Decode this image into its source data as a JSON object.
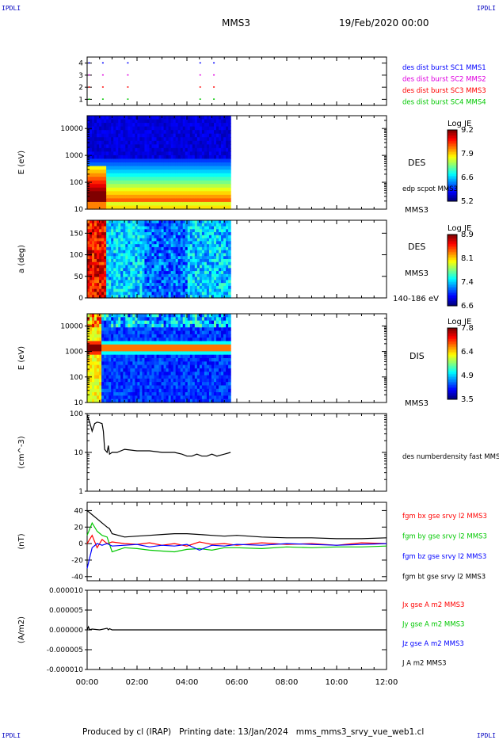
{
  "header": {
    "corner_tl": "IPDLI",
    "corner_tr": "IPDLI",
    "corner_bl": "IPDLI",
    "corner_br": "IPDLI",
    "spacecraft": "MMS3",
    "date": "19/Feb/2020 00:00"
  },
  "footer": {
    "produced_by": "Produced by cl (IRAP)",
    "printing_date": "Printing date: 13/Jan/2024",
    "file": "mms_mms3_srvy_vue_web1.cl"
  },
  "colors": {
    "black": "#000000",
    "red": "#ff0000",
    "green": "#00c800",
    "blue": "#0000ff",
    "magenta": "#e000e0"
  },
  "chart_data": [
    {
      "type": "scatter",
      "panel": "burst-availability",
      "yticks": [
        "1",
        "2",
        "3",
        "4"
      ],
      "ylim": [
        0.5,
        4.5
      ],
      "legend": [
        {
          "name": "des dist burst SC1 MMS1",
          "color": "#0000ff"
        },
        {
          "name": "des dist burst SC2 MMS2",
          "color": "#e000e0"
        },
        {
          "name": "des dist burst SC3 MMS3",
          "color": "#ff0000"
        },
        {
          "name": "des dist burst SC4 MMS4",
          "color": "#00c800"
        }
      ],
      "x_hours": [
        0.05,
        0.6,
        1.6,
        4.5,
        5.05
      ]
    },
    {
      "type": "heatmap",
      "panel": "des-energy-spectrogram",
      "ylabel": "E (eV)",
      "yscale": "log",
      "yticks": [
        "10",
        "100",
        "1000",
        "10000"
      ],
      "ylim": [
        10,
        30000
      ],
      "data_end_hours": 5.75,
      "side_label": "DES",
      "sub_label": "MMS3",
      "overlay_label": "edp scpot MMS3",
      "colorbar": {
        "title": "Log JE",
        "ticks": [
          "9.2",
          "7.9",
          "6.6",
          "5.2"
        ]
      }
    },
    {
      "type": "heatmap",
      "panel": "des-pitch-angle",
      "ylabel": "a (deg)",
      "yticks": [
        "0",
        "50",
        "100",
        "150"
      ],
      "ylim": [
        0,
        180
      ],
      "data_end_hours": 5.75,
      "side_label": "DES",
      "sub_label": "MMS3",
      "energy_label": "140-186 eV",
      "colorbar": {
        "title": "Log JE",
        "ticks": [
          "8.9",
          "8.1",
          "7.4",
          "6.6"
        ]
      }
    },
    {
      "type": "heatmap",
      "panel": "dis-energy-spectrogram",
      "ylabel": "E (eV)",
      "yscale": "log",
      "yticks": [
        "10",
        "100",
        "1000",
        "10000"
      ],
      "ylim": [
        10,
        30000
      ],
      "data_end_hours": 5.75,
      "side_label": "DIS",
      "sub_label": "MMS3",
      "colorbar": {
        "title": "Log JE",
        "ticks": [
          "7.8",
          "6.4",
          "4.9",
          "3.5"
        ]
      }
    },
    {
      "type": "line",
      "panel": "density",
      "ylabel": "(cm^-3)",
      "yscale": "log",
      "yticks": [
        "1",
        "10",
        "100"
      ],
      "ylim": [
        1,
        100
      ],
      "legend": [
        {
          "name": "des numberdensity fast MMS3",
          "color": "#000000"
        }
      ],
      "series": [
        {
          "name": "des numberdensity fast MMS3",
          "color": "#000000",
          "x": [
            0.0,
            0.1,
            0.2,
            0.3,
            0.4,
            0.5,
            0.6,
            0.65,
            0.7,
            0.8,
            0.85,
            0.9,
            1.0,
            1.2,
            1.5,
            2.0,
            2.5,
            3.0,
            3.5,
            3.8,
            4.0,
            4.2,
            4.4,
            4.6,
            4.8,
            5.0,
            5.2,
            5.5,
            5.75
          ],
          "y": [
            90,
            60,
            35,
            55,
            60,
            58,
            55,
            35,
            12,
            10,
            15,
            9,
            10,
            10,
            12,
            11,
            11,
            10,
            10,
            9,
            8,
            8,
            9,
            8,
            8,
            9,
            8,
            9,
            10
          ]
        }
      ]
    },
    {
      "type": "line",
      "panel": "magnetic-field",
      "ylabel": "(nT)",
      "yticks": [
        "-40",
        "-20",
        "0",
        "20",
        "40"
      ],
      "ylim": [
        -45,
        50
      ],
      "legend": [
        {
          "name": "fgm bx gse srvy l2 MMS3",
          "color": "#ff0000"
        },
        {
          "name": "fgm by gse srvy l2 MMS3",
          "color": "#00c800"
        },
        {
          "name": "fgm bz gse srvy l2 MMS3",
          "color": "#0000ff"
        },
        {
          "name": "fgm bt gse srvy l2 MMS3",
          "color": "#000000"
        }
      ],
      "series": [
        {
          "name": "fgm bx gse srvy l2 MMS3",
          "color": "#ff0000",
          "x": [
            0,
            0.2,
            0.4,
            0.6,
            0.8,
            1,
            1.5,
            2,
            2.5,
            3,
            3.5,
            4,
            4.5,
            5,
            5.5,
            6,
            7,
            8,
            9,
            10,
            11,
            12
          ],
          "y": [
            0,
            10,
            -5,
            5,
            0,
            2,
            0,
            -1,
            1,
            -2,
            0,
            -3,
            2,
            -1,
            0,
            -2,
            1,
            -1,
            0,
            -2,
            1,
            0
          ]
        },
        {
          "name": "fgm by gse srvy l2 MMS3",
          "color": "#00c800",
          "x": [
            0,
            0.2,
            0.4,
            0.6,
            0.8,
            1,
            1.5,
            2,
            2.5,
            3,
            3.5,
            4,
            4.5,
            5,
            5.5,
            6,
            7,
            8,
            9,
            10,
            11,
            12
          ],
          "y": [
            10,
            25,
            15,
            10,
            8,
            -10,
            -5,
            -6,
            -8,
            -9,
            -10,
            -7,
            -6,
            -8,
            -5,
            -5,
            -6,
            -4,
            -5,
            -4,
            -4,
            -3
          ]
        },
        {
          "name": "fgm bz gse srvy l2 MMS3",
          "color": "#0000ff",
          "x": [
            0,
            0.2,
            0.4,
            0.6,
            0.8,
            1,
            1.5,
            2,
            2.5,
            3,
            3.5,
            4,
            4.5,
            5,
            5.5,
            6,
            7,
            8,
            9,
            10,
            11,
            12
          ],
          "y": [
            -30,
            -5,
            0,
            -2,
            0,
            -3,
            -2,
            -1,
            -4,
            -2,
            -3,
            -1,
            -8,
            -2,
            -3,
            -1,
            -2,
            0,
            -1,
            -2,
            -1,
            0
          ]
        },
        {
          "name": "fgm bt gse srvy l2 MMS3",
          "color": "#000000",
          "x": [
            0,
            0.2,
            0.4,
            0.6,
            0.8,
            0.9,
            1,
            1.5,
            2,
            2.5,
            3,
            3.5,
            4,
            4.5,
            5,
            5.5,
            6,
            7,
            8,
            9,
            10,
            11,
            12
          ],
          "y": [
            40,
            35,
            30,
            25,
            20,
            18,
            12,
            8,
            9,
            10,
            11,
            12,
            12,
            11,
            10,
            9,
            10,
            8,
            7,
            7,
            6,
            6,
            7
          ]
        }
      ]
    },
    {
      "type": "line",
      "panel": "current-density",
      "ylabel": "(A/m2)",
      "yticks": [
        "-0.000010",
        "-0.000005",
        "0.000000",
        "0.000005",
        "0.000010"
      ],
      "ylim": [
        -1e-05,
        1e-05
      ],
      "xlabel_ticks": [
        "00:00",
        "02:00",
        "04:00",
        "06:00",
        "08:00",
        "10:00",
        "12:00"
      ],
      "legend": [
        {
          "name": "Jx gse A m2 MMS3",
          "color": "#ff0000"
        },
        {
          "name": "Jy gse A m2 MMS3",
          "color": "#00c800"
        },
        {
          "name": "Jz gse A m2 MMS3",
          "color": "#0000ff"
        },
        {
          "name": "J A m2 MMS3",
          "color": "#000000"
        }
      ],
      "series": [
        {
          "name": "J A m2 MMS3",
          "color": "#000000",
          "x": [
            0,
            0.05,
            0.1,
            0.2,
            0.5,
            0.8,
            0.85,
            0.9,
            1.0,
            2,
            4,
            6,
            8,
            10,
            12
          ],
          "y": [
            0,
            8e-07,
            0,
            2e-07,
            0,
            4e-07,
            0,
            3e-07,
            0,
            0,
            0,
            0,
            0,
            0,
            0
          ]
        }
      ]
    }
  ]
}
